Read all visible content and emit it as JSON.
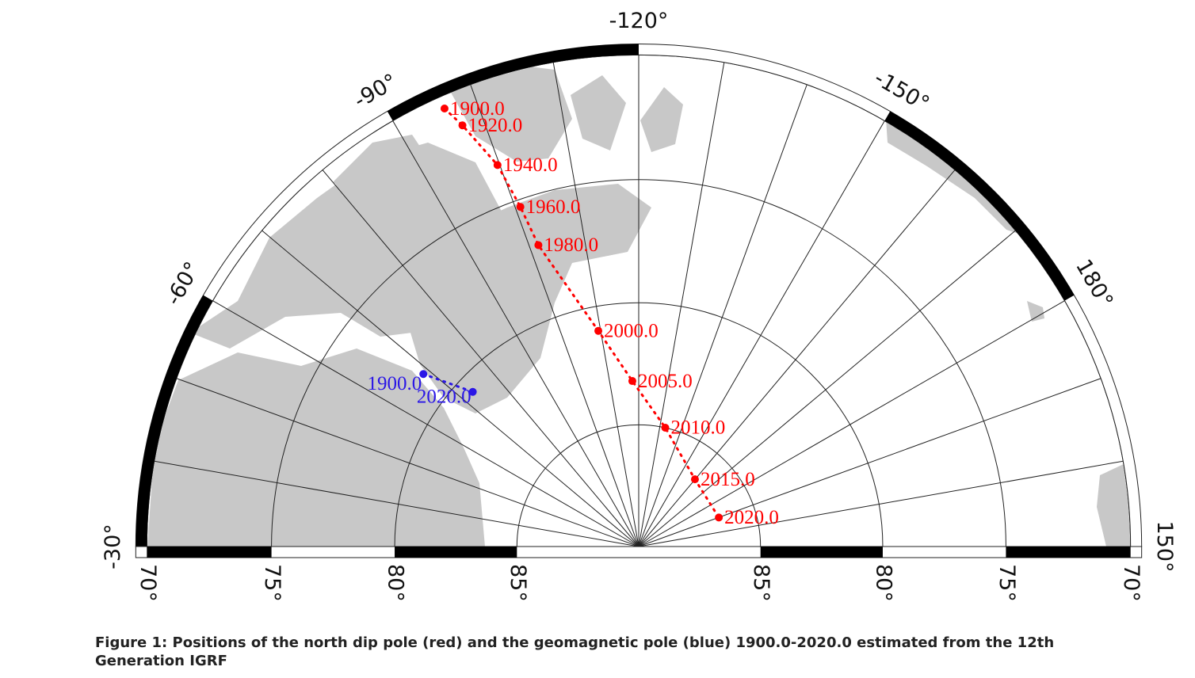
{
  "map": {
    "meridian_labels": [
      {
        "value": -30,
        "label": "-30°"
      },
      {
        "value": -60,
        "label": "-60°"
      },
      {
        "value": -90,
        "label": "-90°"
      },
      {
        "value": -120,
        "label": "-120°"
      },
      {
        "value": -150,
        "label": "-150°"
      },
      {
        "value": 180,
        "label": "180°"
      },
      {
        "value": 150,
        "label": "150°"
      }
    ],
    "latitude_labels_left": [
      {
        "value": 70,
        "label": "70°"
      },
      {
        "value": 75,
        "label": "75°"
      },
      {
        "value": 80,
        "label": "80°"
      },
      {
        "value": 85,
        "label": "85°"
      }
    ],
    "latitude_labels_right": [
      {
        "value": 85,
        "label": "85°"
      },
      {
        "value": 80,
        "label": "80°"
      },
      {
        "value": 75,
        "label": "75°"
      },
      {
        "value": 70,
        "label": "70°"
      }
    ],
    "dip_pole": {
      "color": "#ff0000",
      "points": [
        {
          "label": "1900.0",
          "lat": 70.5,
          "lon": -96.1
        },
        {
          "label": "1920.0",
          "lat": 71.4,
          "lon": -97.3
        },
        {
          "label": "1940.0",
          "lat": 73.4,
          "lon": -99.7
        },
        {
          "label": "1960.0",
          "lat": 75.3,
          "lon": -100.8
        },
        {
          "label": "1980.0",
          "lat": 77.0,
          "lon": -101.6
        },
        {
          "label": "2000.0",
          "lat": 81.0,
          "lon": -109.4
        },
        {
          "label": "2005.0",
          "lat": 83.2,
          "lon": -117.8
        },
        {
          "label": "2010.0",
          "lat": 85.0,
          "lon": -132.6
        },
        {
          "label": "2015.0",
          "lat": 86.4,
          "lon": -159.9
        },
        {
          "label": "2020.0",
          "lat": 86.5,
          "lon": 169.9
        }
      ]
    },
    "geomagnetic_pole": {
      "color": "#2a16e6",
      "points": [
        {
          "label": "1900.0",
          "lat": 78.7,
          "lon": -68.7
        },
        {
          "label": "2020.0",
          "lat": 80.7,
          "lon": -73.0
        }
      ]
    }
  },
  "caption": "Figure 1: Positions of the north dip pole (red) and the geomagnetic pole (blue) 1900.0-2020.0 estimated from the 12th Generation IGRF"
}
